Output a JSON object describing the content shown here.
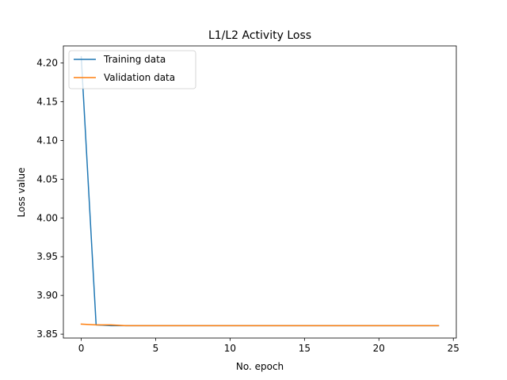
{
  "chart_data": {
    "type": "line",
    "title": "L1/L2 Activity Loss",
    "xlabel": "No. epoch",
    "ylabel": "Loss value",
    "xlim": [
      -1.2,
      25.2
    ],
    "ylim": [
      3.845,
      4.222
    ],
    "xticks": [
      0,
      5,
      10,
      15,
      20,
      25
    ],
    "yticks": [
      3.85,
      3.9,
      3.95,
      4.0,
      4.05,
      4.1,
      4.15,
      4.2
    ],
    "ytick_labels": [
      "3.85",
      "3.90",
      "3.95",
      "4.00",
      "4.05",
      "4.10",
      "4.15",
      "4.20"
    ],
    "grid": false,
    "legend_position": "top-left",
    "series": [
      {
        "name": "Training data",
        "color": "#1f77b4",
        "x": [
          0,
          1,
          2,
          3,
          4,
          5,
          6,
          7,
          8,
          9,
          10,
          11,
          12,
          13,
          14,
          15,
          16,
          17,
          18,
          19,
          20,
          21,
          22,
          23,
          24
        ],
        "y": [
          4.208,
          3.862,
          3.861,
          3.861,
          3.861,
          3.861,
          3.861,
          3.861,
          3.861,
          3.861,
          3.861,
          3.861,
          3.861,
          3.861,
          3.861,
          3.861,
          3.861,
          3.861,
          3.861,
          3.861,
          3.861,
          3.861,
          3.861,
          3.861,
          3.861
        ]
      },
      {
        "name": "Validation data",
        "color": "#ff7f0e",
        "x": [
          0,
          1,
          2,
          3,
          4,
          5,
          6,
          7,
          8,
          9,
          10,
          11,
          12,
          13,
          14,
          15,
          16,
          17,
          18,
          19,
          20,
          21,
          22,
          23,
          24
        ],
        "y": [
          3.863,
          3.862,
          3.862,
          3.861,
          3.861,
          3.861,
          3.861,
          3.861,
          3.861,
          3.861,
          3.861,
          3.861,
          3.861,
          3.861,
          3.861,
          3.861,
          3.861,
          3.861,
          3.861,
          3.861,
          3.861,
          3.861,
          3.861,
          3.861,
          3.861
        ]
      }
    ]
  }
}
